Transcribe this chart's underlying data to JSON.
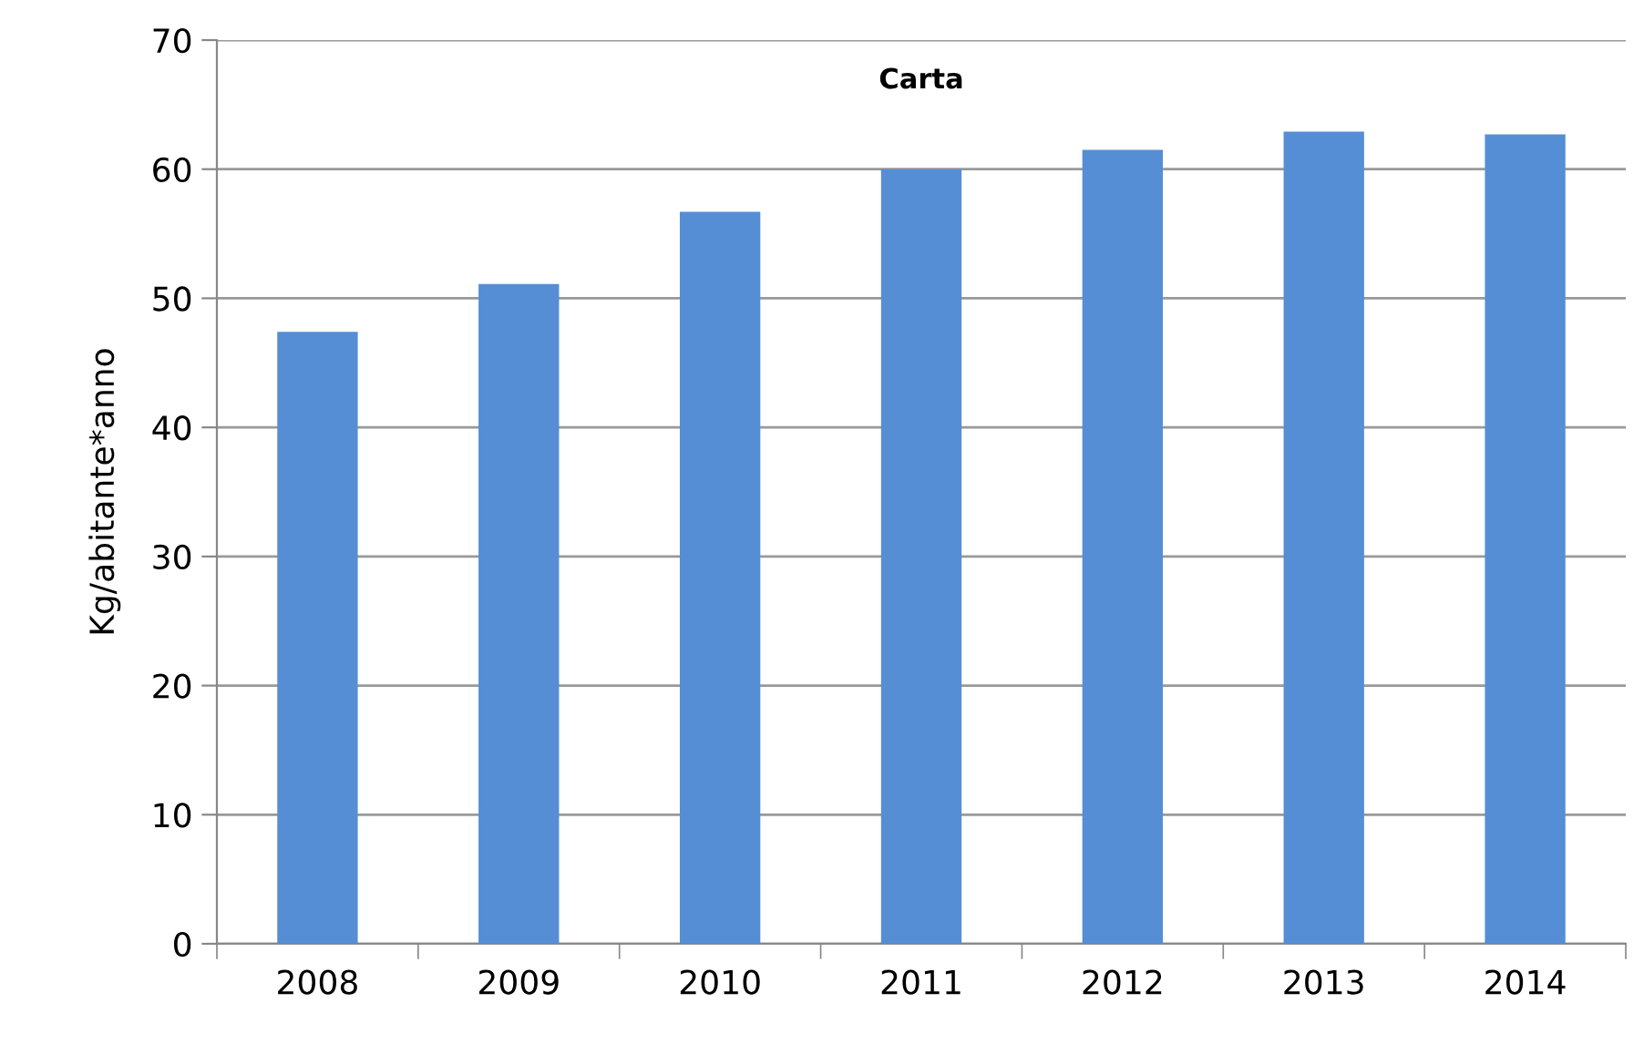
{
  "chart_data": {
    "type": "bar",
    "title": "Carta",
    "ylabel": "Kg/abitante*anno",
    "categories": [
      "2008",
      "2009",
      "2010",
      "2011",
      "2012",
      "2013",
      "2014"
    ],
    "values": [
      47.4,
      51.1,
      56.7,
      60.0,
      61.5,
      62.9,
      62.7
    ],
    "color": "#558ed5",
    "ylim": [
      0,
      70
    ],
    "yticks": [
      0,
      10,
      20,
      30,
      40,
      50,
      60,
      70
    ],
    "grid": "y"
  }
}
